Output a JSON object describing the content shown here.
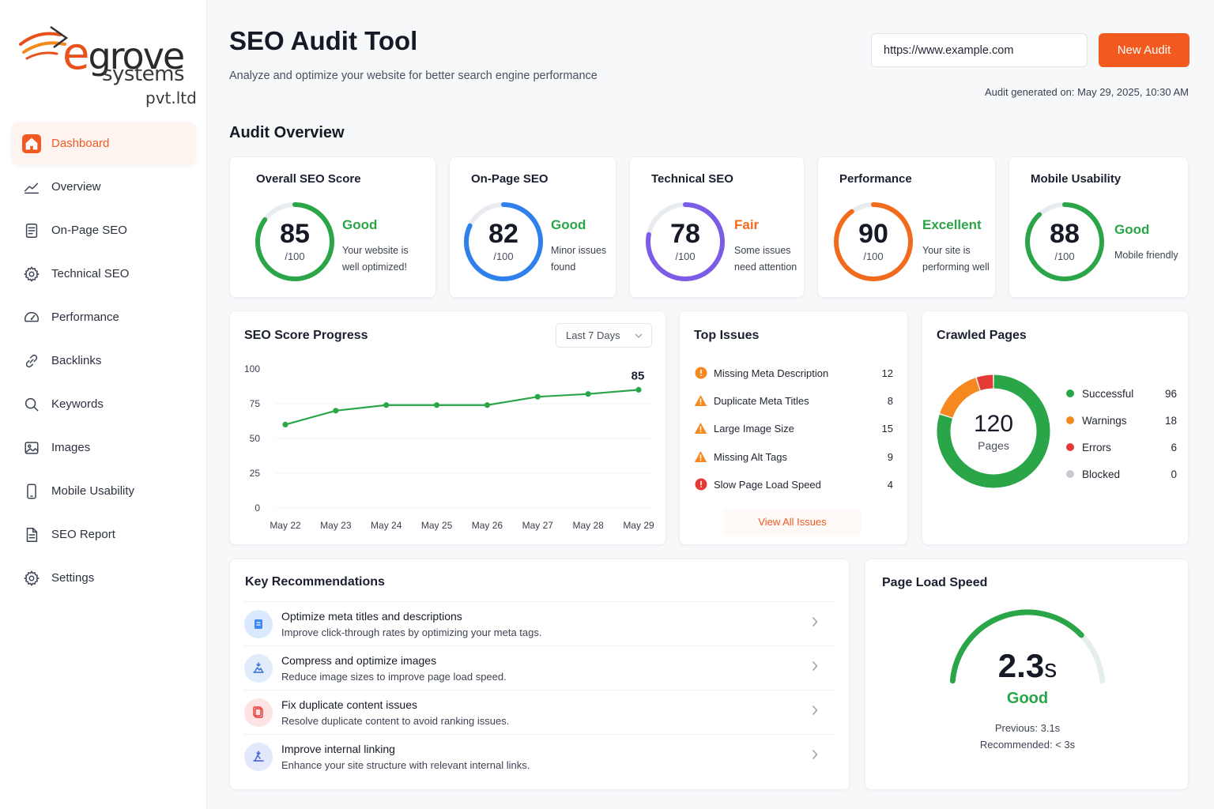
{
  "brand": {
    "name_e": "e",
    "name_rest": "grove",
    "sub": "systems",
    "pvt": "pvt.ltd"
  },
  "sidebar": {
    "items": [
      {
        "label": "Dashboard",
        "icon": "home-icon",
        "active": true
      },
      {
        "label": "Overview",
        "icon": "trend-icon"
      },
      {
        "label": "On-Page SEO",
        "icon": "document-icon"
      },
      {
        "label": "Technical SEO",
        "icon": "gear-icon"
      },
      {
        "label": "Performance",
        "icon": "gauge-icon"
      },
      {
        "label": "Backlinks",
        "icon": "link-icon"
      },
      {
        "label": "Keywords",
        "icon": "search-icon"
      },
      {
        "label": "Images",
        "icon": "image-icon"
      },
      {
        "label": "Mobile Usability",
        "icon": "mobile-icon"
      },
      {
        "label": "SEO Report",
        "icon": "report-icon"
      },
      {
        "label": "Settings",
        "icon": "gear-icon"
      }
    ]
  },
  "header": {
    "title": "SEO Audit Tool",
    "subtitle": "Analyze and optimize your website for better search engine performance",
    "url_value": "https://www.example.com",
    "new_audit_label": "New Audit",
    "generated": "Audit generated on: May 29, 2025, 10:30 AM"
  },
  "overview": {
    "title": "Audit Overview",
    "cards": [
      {
        "title": "Overall SEO Score",
        "score": "85",
        "out_of": "/100",
        "status": "Good",
        "status_color": "#2aa548",
        "ring_color": "#2aa548",
        "line1": "Your website is",
        "line2": "well optimized!"
      },
      {
        "title": "On-Page SEO",
        "score": "82",
        "out_of": "/100",
        "status": "Good",
        "status_color": "#2aa548",
        "ring_color": "#2f80ed",
        "line1": "Minor issues",
        "line2": "found"
      },
      {
        "title": "Technical SEO",
        "score": "78",
        "out_of": "/100",
        "status": "Fair",
        "status_color": "#f26b1d",
        "ring_color": "#7b5ce6",
        "line1": "Some issues",
        "line2": "need attention"
      },
      {
        "title": "Performance",
        "score": "90",
        "out_of": "/100",
        "status": "Excellent",
        "status_color": "#2aa548",
        "ring_color": "#f26b1d",
        "line1": "Your site is",
        "line2": "performing well"
      },
      {
        "title": "Mobile Usability",
        "score": "88",
        "out_of": "/100",
        "status": "Good",
        "status_color": "#2aa548",
        "ring_color": "#2aa548",
        "line1": "Mobile friendly",
        "line2": ""
      }
    ]
  },
  "progress": {
    "title": "SEO Score Progress",
    "range_label": "Last 7 Days",
    "chart_data": {
      "type": "line",
      "categories": [
        "May 22",
        "May 23",
        "May 24",
        "May 25",
        "May 26",
        "May 27",
        "May 28",
        "May 29"
      ],
      "values": [
        60,
        70,
        74,
        74,
        74,
        80,
        82,
        85
      ],
      "last_label": "85",
      "yticks": [
        "100",
        "75",
        "50",
        "25",
        "0"
      ],
      "ylim": [
        0,
        100
      ],
      "color": "#2aa548"
    }
  },
  "issues": {
    "title": "Top Issues",
    "items": [
      {
        "label": "Missing Meta Description",
        "count": "12",
        "icon": "info-circle-icon",
        "color": "#f5891f"
      },
      {
        "label": "Duplicate Meta Titles",
        "count": "8",
        "icon": "warning-icon",
        "color": "#f5891f"
      },
      {
        "label": "Large Image Size",
        "count": "15",
        "icon": "warning-icon",
        "color": "#f5891f"
      },
      {
        "label": "Missing Alt Tags",
        "count": "9",
        "icon": "warning-icon",
        "color": "#f5891f"
      },
      {
        "label": "Slow Page Load Speed",
        "count": "4",
        "icon": "error-circle-icon",
        "color": "#e53935"
      }
    ],
    "view_all": "View All Issues"
  },
  "crawled": {
    "title": "Crawled Pages",
    "total": "120",
    "unit": "Pages",
    "chart_data": {
      "type": "pie",
      "labels": [
        "Successful",
        "Warnings",
        "Errors",
        "Blocked"
      ],
      "values": [
        96,
        18,
        6,
        0
      ],
      "colors": [
        "#2aa548",
        "#f5891f",
        "#e53935",
        "#c7cad1"
      ]
    },
    "legend": [
      {
        "label": "Successful",
        "value": "96",
        "color": "#2aa548"
      },
      {
        "label": "Warnings",
        "value": "18",
        "color": "#f5891f"
      },
      {
        "label": "Errors",
        "value": "6",
        "color": "#e53935"
      },
      {
        "label": "Blocked",
        "value": "0",
        "color": "#c7cad1"
      }
    ]
  },
  "recommendations": {
    "title": "Key Recommendations",
    "items": [
      {
        "title": "Optimize meta titles and descriptions",
        "desc": "Improve click-through rates by optimizing your meta tags.",
        "icon": "document-icon",
        "bg": "#dbe9ff",
        "fg": "#2f80ed"
      },
      {
        "title": "Compress and optimize images",
        "desc": "Reduce image sizes to improve page load speed.",
        "icon": "image-compress-icon",
        "bg": "#e1ecfb",
        "fg": "#2f6fd6"
      },
      {
        "title": "Fix duplicate content issues",
        "desc": "Resolve duplicate content to avoid ranking issues.",
        "icon": "duplicate-icon",
        "bg": "#fde3e3",
        "fg": "#e53935"
      },
      {
        "title": "Improve internal linking",
        "desc": "Enhance your site structure with relevant internal links.",
        "icon": "link-icon",
        "bg": "#e3e8fb",
        "fg": "#3f5bd6"
      }
    ]
  },
  "speed": {
    "title": "Page Load Speed",
    "value": "2.3",
    "unit": "s",
    "status": "Good",
    "previous": "Previous: 3.1s",
    "recommended": "Recommended: < 3s",
    "gauge_fraction": 0.77
  }
}
